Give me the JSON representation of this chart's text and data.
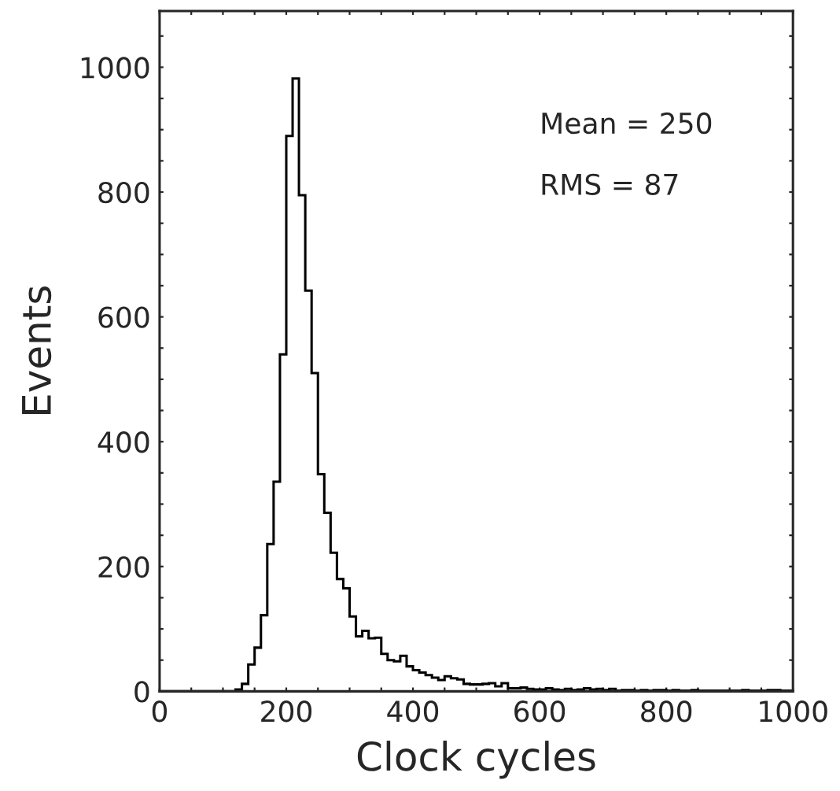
{
  "chart_data": {
    "type": "histogram",
    "xlabel": "Clock cycles",
    "ylabel": "Events",
    "bins": [
      0,
      10,
      20,
      30,
      40,
      50,
      60,
      70,
      80,
      90,
      100,
      110,
      120,
      130,
      140,
      150,
      160,
      170,
      180,
      190,
      200,
      210,
      220,
      230,
      240,
      250,
      260,
      270,
      280,
      290,
      300,
      310,
      320,
      330,
      340,
      350,
      360,
      370,
      380,
      390,
      400,
      410,
      420,
      430,
      440,
      450,
      460,
      470,
      480,
      490,
      500,
      510,
      520,
      530,
      540,
      550,
      560,
      570,
      580,
      590,
      600,
      610,
      620,
      630,
      640,
      650,
      660,
      670,
      680,
      690,
      700,
      710,
      720,
      730,
      740,
      750,
      760,
      770,
      780,
      790,
      800,
      810,
      820,
      830,
      840,
      850,
      860,
      870,
      880,
      890,
      900,
      910,
      920,
      930,
      940,
      950,
      960,
      970,
      980,
      990,
      1000
    ],
    "values": [
      0,
      0,
      0,
      0,
      0,
      0,
      0,
      0,
      0,
      0,
      0,
      0,
      3,
      12,
      43,
      70,
      122,
      236,
      336,
      540,
      890,
      982,
      795,
      642,
      510,
      348,
      286,
      222,
      180,
      165,
      120,
      88,
      97,
      85,
      86,
      60,
      50,
      48,
      57,
      40,
      34,
      30,
      26,
      22,
      18,
      24,
      21,
      19,
      12,
      11,
      11,
      12,
      13,
      8,
      13,
      5,
      5,
      6,
      4,
      3,
      3,
      5,
      3,
      2,
      4,
      2,
      3,
      5,
      3,
      4,
      2,
      4,
      1,
      2,
      2,
      1,
      2,
      1,
      2,
      2,
      1,
      2,
      1,
      1,
      2,
      1,
      1,
      1,
      1,
      1,
      1,
      1,
      2,
      1,
      1,
      1,
      2,
      2,
      1,
      1
    ],
    "color": "#000000",
    "xlim": [
      0,
      1000
    ],
    "xticks": [
      0,
      {
        "value": 50,
        "label": null
      },
      {
        "value": 100,
        "label": null
      },
      {
        "value": 150,
        "label": null
      },
      200,
      {
        "value": 250,
        "label": null
      },
      {
        "value": 300,
        "label": null
      },
      {
        "value": 350,
        "label": null
      },
      400,
      {
        "value": 450,
        "label": null
      },
      {
        "value": 500,
        "label": null
      },
      {
        "value": 550,
        "label": null
      },
      600,
      {
        "value": 650,
        "label": null
      },
      {
        "value": 700,
        "label": null
      },
      {
        "value": 750,
        "label": null
      },
      800,
      {
        "value": 850,
        "label": null
      },
      {
        "value": 900,
        "label": null
      },
      {
        "value": 950,
        "label": null
      },
      1000
    ],
    "ylim": [
      0,
      1090
    ],
    "yticks": [
      0,
      {
        "value": 50,
        "label": null
      },
      {
        "value": 100,
        "label": null
      },
      {
        "value": 150,
        "label": null
      },
      200,
      {
        "value": 250,
        "label": null
      },
      {
        "value": 300,
        "label": null
      },
      {
        "value": 350,
        "label": null
      },
      400,
      {
        "value": 450,
        "label": null
      },
      {
        "value": 500,
        "label": null
      },
      {
        "value": 550,
        "label": null
      },
      600,
      {
        "value": 650,
        "label": null
      },
      {
        "value": 700,
        "label": null
      },
      {
        "value": 750,
        "label": null
      },
      800,
      {
        "value": 850,
        "label": null
      },
      {
        "value": 900,
        "label": null
      },
      {
        "value": 950,
        "label": null
      },
      1000,
      {
        "value": 1050,
        "label": null
      }
    ],
    "annotations": [
      "Mean = 250",
      "RMS = 87"
    ],
    "grid": false
  }
}
